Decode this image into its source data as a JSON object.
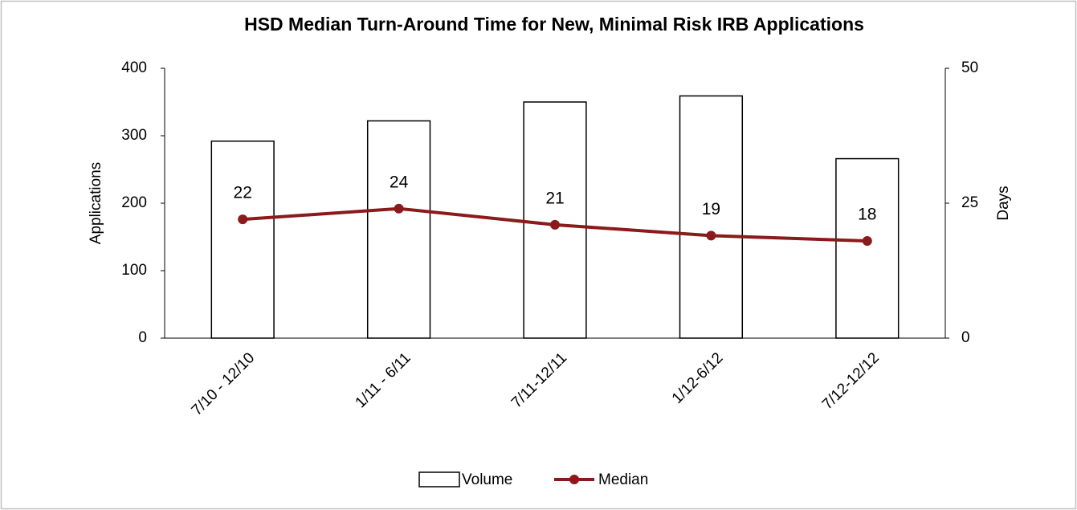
{
  "chart_data": {
    "type": "bar-line",
    "title": "HSD Median Turn-Around Time for New, Minimal Risk IRB Applications",
    "categories": [
      "7/10 - 12/10",
      "1/11 - 6/11",
      "7/11-12/11",
      "1/12-6/12",
      "7/12-12/12"
    ],
    "series": [
      {
        "name": "Volume",
        "type": "bar",
        "color": "#ffffff",
        "stroke": "#000000",
        "values": [
          292,
          322,
          350,
          359,
          266
        ]
      },
      {
        "name": "Median",
        "type": "line",
        "axis": "y2",
        "color": "#8b1a1a",
        "values": [
          22,
          24,
          21,
          19,
          18
        ]
      }
    ],
    "ylabel": "Applications",
    "y2label": "Days",
    "ylim": [
      0,
      400
    ],
    "yticks": [
      0,
      100,
      200,
      300,
      400
    ],
    "y2lim": [
      0,
      50
    ],
    "y2ticks": [
      0,
      25,
      50
    ],
    "grid": false,
    "legend": "bottom"
  }
}
